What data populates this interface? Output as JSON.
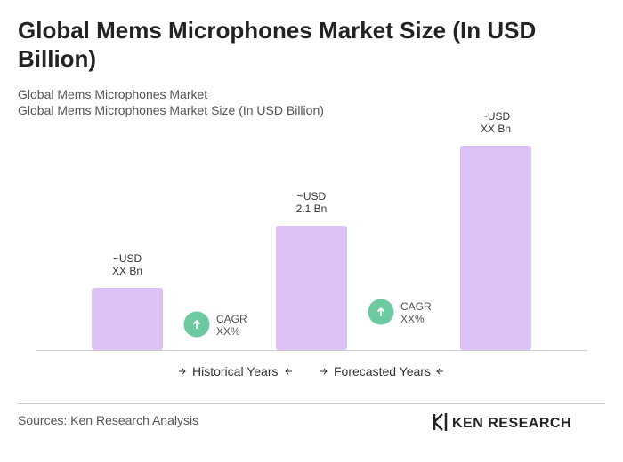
{
  "chart_data": {
    "type": "bar",
    "title": "Global Mems Microphones Market Size (In USD Billion)",
    "subtitle": [
      "Global Mems Microphones Market",
      "Global Mems Microphones Market Size (In USD Billion)"
    ],
    "values": [
      1.05,
      2.1,
      3.45
    ],
    "value_labels": [
      [
        "~USD",
        "XX Bn"
      ],
      [
        "~USD",
        "2.1 Bn"
      ],
      [
        "~USD",
        "XX Bn"
      ]
    ],
    "color": "#dcc1f7",
    "annotations": [
      [
        "CAGR",
        "XX%"
      ],
      [
        "CAGR",
        "XX%"
      ]
    ],
    "legend": [
      "Historical Years",
      "Forecasted Years"
    ],
    "source": "Sources: Ken Research Analysis",
    "logo": "KEN RESEARCH"
  }
}
